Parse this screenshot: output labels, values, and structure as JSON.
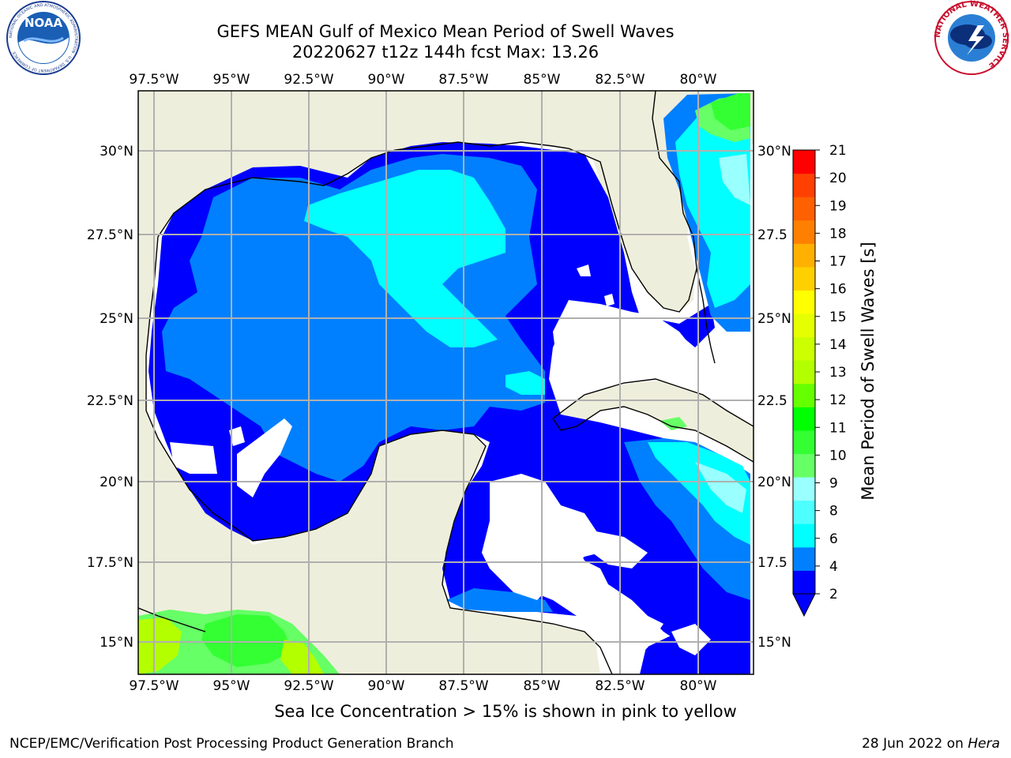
{
  "title_line1": "GEFS MEAN Gulf of Mexico Mean Period of Swell Waves",
  "title_line2": "20220627 t12z 144h fcst   Max: 13.26",
  "caption": "Sea Ice Concentration > 15% is shown in pink to yellow",
  "footer_left": "NCEP/EMC/Verification Post Processing Product Generation Branch",
  "footer_right_prefix": "28 Jun 2022 on ",
  "footer_right_machine": "Hera",
  "logos": {
    "left": "noaa-logo",
    "right": "nws-logo"
  },
  "logo_text": {
    "noaa": "NOAA",
    "noaa_ring": "NATIONAL OCEANIC AND ATMOSPHERIC ADMINISTRATION · U.S. DEPARTMENT OF COMMERCE",
    "nws_ring": "NATIONAL WEATHER SERVICE"
  },
  "map": {
    "lon_ticks": [
      "97.5°W",
      "95°W",
      "92.5°W",
      "90°W",
      "87.5°W",
      "85°W",
      "82.5°W",
      "80°W"
    ],
    "lat_ticks_left": [
      "30°N",
      "27.5°N",
      "25°N",
      "22.5°N",
      "20°N",
      "17.5°N",
      "15°N"
    ],
    "lat_ticks_right": [
      "30°N",
      "27.5",
      "25°N",
      "22.5",
      "20°N",
      "17.5",
      "15°N"
    ],
    "land_color": "#eeeedc",
    "grid_color": "#b0b0b0"
  },
  "colorbar": {
    "label": "Mean Period of Swell Waves [s]",
    "tick_labels": [
      "2",
      "4",
      "6",
      "8",
      "9",
      "10",
      "11",
      "12",
      "13",
      "14",
      "15",
      "16",
      "17",
      "18",
      "19",
      "20",
      "21"
    ],
    "colors": [
      "#0000ff",
      "#0080ff",
      "#00ffff",
      "#4dffff",
      "#99ffff",
      "#66ff66",
      "#33ff33",
      "#00ff00",
      "#66ff00",
      "#b3ff00",
      "#ccff00",
      "#e6ff00",
      "#ffff00",
      "#ffd000",
      "#ffb000",
      "#ff8000",
      "#ff6000",
      "#ff4000",
      "#ff0000"
    ],
    "extend_color": "#0000ff"
  }
}
